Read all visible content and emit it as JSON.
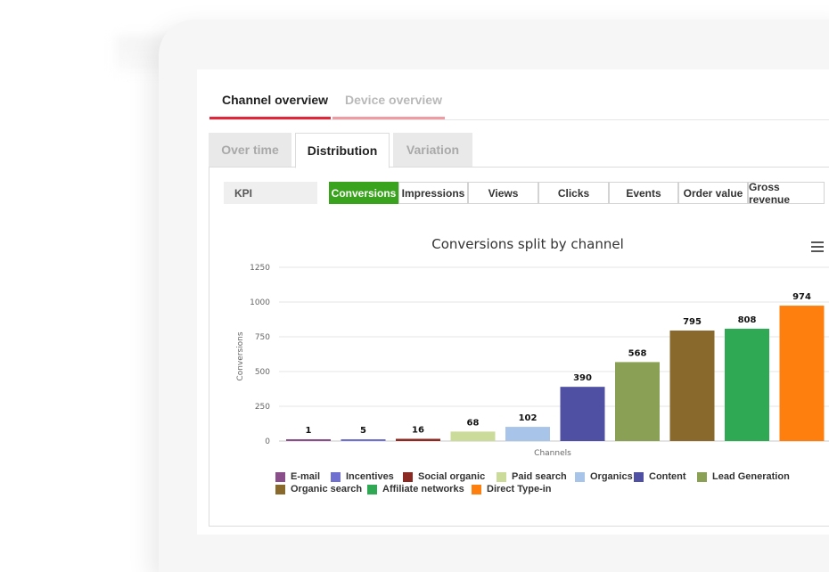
{
  "top_tabs": [
    {
      "label": "Channel overview",
      "active": true
    },
    {
      "label": "Device overview",
      "active": false
    }
  ],
  "sub_tabs": [
    {
      "label": "Over time",
      "active": false
    },
    {
      "label": "Distribution",
      "active": true
    },
    {
      "label": "Variation",
      "active": false
    }
  ],
  "kpi": {
    "label": "KPI",
    "options": [
      {
        "label": "Conversions",
        "active": true
      },
      {
        "label": "Impressions",
        "active": false
      },
      {
        "label": "Views",
        "active": false
      },
      {
        "label": "Clicks",
        "active": false
      },
      {
        "label": "Events",
        "active": false
      },
      {
        "label": "Order value",
        "active": false
      },
      {
        "label": "Gross revenue",
        "active": false
      }
    ]
  },
  "menu_icon": "hamburger-menu-icon",
  "colors": {
    "accent_red": "#e2263a",
    "active_green": "#3aa31d"
  },
  "chart_data": {
    "type": "bar",
    "title": "Conversions split by channel",
    "xlabel": "Channels",
    "ylabel": "Conversions",
    "ylim": [
      0,
      1250
    ],
    "yticks": [
      "0",
      "250",
      "500",
      "750",
      "1000",
      "1250"
    ],
    "grid": true,
    "legend_position": "bottom",
    "categories": [
      "E-mail",
      "Incentives",
      "Social organic",
      "Paid search",
      "Organics",
      "Content",
      "Lead Generation",
      "Organic search",
      "Affiliate networks",
      "Direct Type-in"
    ],
    "values": [
      1,
      5,
      16,
      68,
      102,
      390,
      568,
      795,
      808,
      974
    ],
    "data_labels": [
      "1",
      "5",
      "16",
      "68",
      "102",
      "390",
      "568",
      "795",
      "808",
      "974"
    ],
    "colors": [
      "#8a4f8a",
      "#6f70cf",
      "#8b2a22",
      "#cbdb9a",
      "#a8c4e8",
      "#4f4fa3",
      "#8aa155",
      "#8a6a2c",
      "#30a955",
      "#ff7f0e"
    ]
  }
}
